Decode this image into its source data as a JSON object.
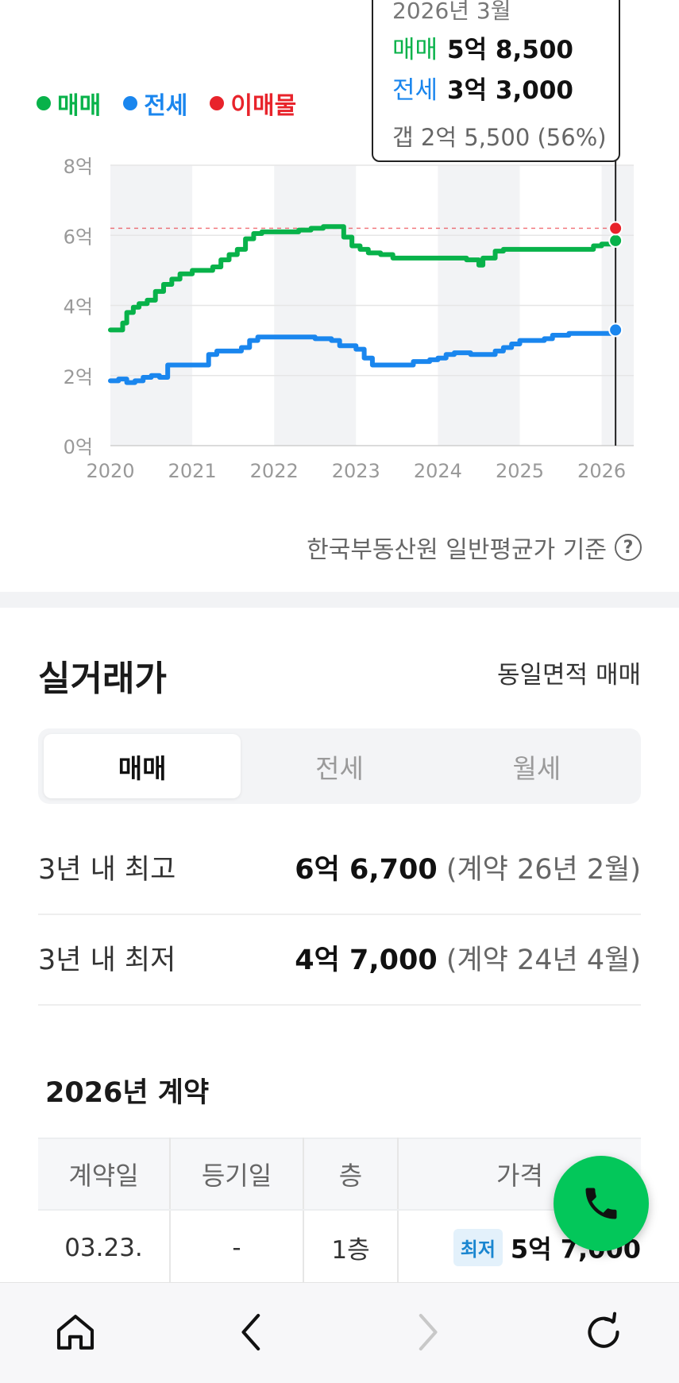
{
  "chart": {
    "legend": [
      {
        "label": "매매",
        "color": "#08b24a"
      },
      {
        "label": "전세",
        "color": "#1a86ee"
      },
      {
        "label": "이매물",
        "color": "#e8232b"
      }
    ],
    "tooltip": {
      "date": "2026년 3월",
      "sale_label": "매매",
      "sale_value": "5억 8,500",
      "jeonse_label": "전세",
      "jeonse_value": "3억 3,000",
      "gap": "갭 2억 5,500 (56%)"
    },
    "source_note": "한국부동산원 일반평균가 기준",
    "help_icon": "question-circle-icon"
  },
  "chart_data": {
    "type": "line",
    "x_labels": [
      "2020",
      "2021",
      "2022",
      "2023",
      "2024",
      "2025",
      "2026"
    ],
    "y_labels": [
      "8억",
      "6억",
      "4억",
      "2억",
      "0억"
    ],
    "ylim": [
      0,
      8
    ],
    "xlim": [
      2020,
      2026.35
    ],
    "y_unit": "억",
    "grid": true,
    "legend_position": "top-left",
    "series": [
      {
        "name": "매매",
        "color": "#08b24a",
        "points": [
          [
            2020.0,
            3.3
          ],
          [
            2020.1,
            3.3
          ],
          [
            2020.15,
            3.5
          ],
          [
            2020.2,
            3.8
          ],
          [
            2020.28,
            3.95
          ],
          [
            2020.35,
            4.05
          ],
          [
            2020.45,
            4.15
          ],
          [
            2020.55,
            4.4
          ],
          [
            2020.65,
            4.6
          ],
          [
            2020.75,
            4.75
          ],
          [
            2020.85,
            4.9
          ],
          [
            2021.0,
            5.0
          ],
          [
            2021.1,
            5.0
          ],
          [
            2021.25,
            5.1
          ],
          [
            2021.35,
            5.3
          ],
          [
            2021.45,
            5.45
          ],
          [
            2021.55,
            5.6
          ],
          [
            2021.65,
            5.9
          ],
          [
            2021.75,
            6.05
          ],
          [
            2021.85,
            6.1
          ],
          [
            2022.0,
            6.1
          ],
          [
            2022.2,
            6.1
          ],
          [
            2022.3,
            6.15
          ],
          [
            2022.45,
            6.2
          ],
          [
            2022.55,
            6.2
          ],
          [
            2022.6,
            6.25
          ],
          [
            2022.8,
            6.25
          ],
          [
            2022.85,
            5.95
          ],
          [
            2022.95,
            5.7
          ],
          [
            2023.05,
            5.6
          ],
          [
            2023.15,
            5.5
          ],
          [
            2023.3,
            5.45
          ],
          [
            2023.45,
            5.35
          ],
          [
            2023.6,
            5.35
          ],
          [
            2024.0,
            5.35
          ],
          [
            2024.25,
            5.35
          ],
          [
            2024.35,
            5.3
          ],
          [
            2024.5,
            5.15
          ],
          [
            2024.55,
            5.35
          ],
          [
            2024.7,
            5.55
          ],
          [
            2024.8,
            5.6
          ],
          [
            2025.0,
            5.6
          ],
          [
            2025.5,
            5.6
          ],
          [
            2025.8,
            5.6
          ],
          [
            2025.9,
            5.7
          ],
          [
            2026.0,
            5.75
          ],
          [
            2026.17,
            5.85
          ]
        ]
      },
      {
        "name": "전세",
        "color": "#1a86ee",
        "points": [
          [
            2020.0,
            1.85
          ],
          [
            2020.1,
            1.9
          ],
          [
            2020.2,
            1.8
          ],
          [
            2020.3,
            1.85
          ],
          [
            2020.4,
            1.95
          ],
          [
            2020.5,
            2.0
          ],
          [
            2020.6,
            1.95
          ],
          [
            2020.7,
            2.3
          ],
          [
            2020.85,
            2.3
          ],
          [
            2021.0,
            2.3
          ],
          [
            2021.1,
            2.3
          ],
          [
            2021.2,
            2.6
          ],
          [
            2021.3,
            2.7
          ],
          [
            2021.5,
            2.7
          ],
          [
            2021.6,
            2.8
          ],
          [
            2021.7,
            3.0
          ],
          [
            2021.8,
            3.1
          ],
          [
            2022.0,
            3.1
          ],
          [
            2022.3,
            3.1
          ],
          [
            2022.5,
            3.05
          ],
          [
            2022.7,
            3.0
          ],
          [
            2022.8,
            2.85
          ],
          [
            2023.0,
            2.75
          ],
          [
            2023.1,
            2.5
          ],
          [
            2023.2,
            2.3
          ],
          [
            2023.4,
            2.3
          ],
          [
            2023.6,
            2.3
          ],
          [
            2023.7,
            2.4
          ],
          [
            2023.9,
            2.45
          ],
          [
            2024.0,
            2.5
          ],
          [
            2024.1,
            2.6
          ],
          [
            2024.2,
            2.65
          ],
          [
            2024.4,
            2.6
          ],
          [
            2024.6,
            2.6
          ],
          [
            2024.7,
            2.7
          ],
          [
            2024.8,
            2.8
          ],
          [
            2024.9,
            2.9
          ],
          [
            2025.0,
            3.0
          ],
          [
            2025.2,
            3.0
          ],
          [
            2025.3,
            3.05
          ],
          [
            2025.4,
            3.15
          ],
          [
            2025.6,
            3.2
          ],
          [
            2025.8,
            3.2
          ],
          [
            2026.0,
            3.2
          ],
          [
            2026.17,
            3.3
          ]
        ]
      }
    ],
    "listing_reference": {
      "name": "이매물",
      "value": 6.2,
      "color": "#e8232b",
      "x": 2026.17
    },
    "cursor_x": 2026.17
  },
  "real_price": {
    "title": "실거래가",
    "filter": "동일면적 매매",
    "tabs": [
      "매매",
      "전세",
      "월세"
    ],
    "active_tab": 0,
    "stats": [
      {
        "label": "3년 내 최고",
        "value": "6억 6,700",
        "note": "(계약 26년 2월)"
      },
      {
        "label": "3년 내 최저",
        "value": "4억 7,000",
        "note": "(계약 24년 4월)"
      }
    ],
    "year_title": "2026년 계약",
    "table": {
      "headers": [
        "계약일",
        "등기일",
        "층",
        "가격"
      ],
      "rows": [
        {
          "date": "03.23.",
          "registered": "-",
          "floor": "1층",
          "badge": "최저",
          "price": "5억 7,000"
        }
      ]
    }
  },
  "fab": {
    "icon": "phone-icon",
    "color": "#03c75a"
  },
  "bottom_nav": {
    "icons": [
      "home-icon",
      "back-icon",
      "forward-icon",
      "refresh-icon"
    ]
  }
}
